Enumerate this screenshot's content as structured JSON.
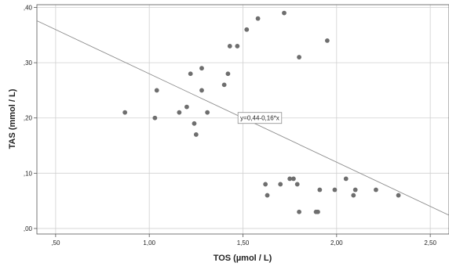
{
  "chart_data": {
    "type": "scatter",
    "title": "",
    "xlabel": "TOS (µmol / L)",
    "ylabel": "TAS (mmol / L)",
    "xlim": [
      0.4,
      2.6
    ],
    "ylim": [
      -0.01,
      0.405
    ],
    "x_ticks": [
      0.5,
      1.0,
      1.5,
      2.0,
      2.5
    ],
    "x_tick_labels": [
      ",50",
      "1,00",
      "1,50",
      "2,00",
      "2,50"
    ],
    "y_ticks": [
      0.0,
      0.1,
      0.2,
      0.3,
      0.4
    ],
    "y_tick_labels": [
      ",00",
      ",10",
      ",20",
      ",30",
      ",40"
    ],
    "grid": true,
    "points": [
      {
        "x": 0.87,
        "y": 0.21
      },
      {
        "x": 1.03,
        "y": 0.2
      },
      {
        "x": 1.04,
        "y": 0.25
      },
      {
        "x": 1.16,
        "y": 0.21
      },
      {
        "x": 1.2,
        "y": 0.22
      },
      {
        "x": 1.22,
        "y": 0.28
      },
      {
        "x": 1.24,
        "y": 0.19
      },
      {
        "x": 1.25,
        "y": 0.17
      },
      {
        "x": 1.28,
        "y": 0.29
      },
      {
        "x": 1.28,
        "y": 0.25
      },
      {
        "x": 1.31,
        "y": 0.21
      },
      {
        "x": 1.4,
        "y": 0.26
      },
      {
        "x": 1.42,
        "y": 0.28
      },
      {
        "x": 1.43,
        "y": 0.33
      },
      {
        "x": 1.47,
        "y": 0.33
      },
      {
        "x": 1.52,
        "y": 0.36
      },
      {
        "x": 1.58,
        "y": 0.38
      },
      {
        "x": 1.62,
        "y": 0.08
      },
      {
        "x": 1.63,
        "y": 0.06
      },
      {
        "x": 1.7,
        "y": 0.08
      },
      {
        "x": 1.72,
        "y": 0.39
      },
      {
        "x": 1.75,
        "y": 0.09
      },
      {
        "x": 1.77,
        "y": 0.09
      },
      {
        "x": 1.79,
        "y": 0.08
      },
      {
        "x": 1.8,
        "y": 0.31
      },
      {
        "x": 1.8,
        "y": 0.03
      },
      {
        "x": 1.89,
        "y": 0.03
      },
      {
        "x": 1.9,
        "y": 0.03
      },
      {
        "x": 1.91,
        "y": 0.07
      },
      {
        "x": 1.95,
        "y": 0.34
      },
      {
        "x": 1.99,
        "y": 0.07
      },
      {
        "x": 2.05,
        "y": 0.09
      },
      {
        "x": 2.09,
        "y": 0.06
      },
      {
        "x": 2.1,
        "y": 0.07
      },
      {
        "x": 2.21,
        "y": 0.07
      },
      {
        "x": 2.33,
        "y": 0.06
      }
    ],
    "fit_line": {
      "intercept": 0.44,
      "slope": -0.16
    },
    "annotation": {
      "text": "y=0,44-0,16*x",
      "x": 1.59,
      "y": 0.2
    },
    "colors": {
      "points": "#6e6e6e",
      "line": "#8c8c8c",
      "grid": "#d0d0d0",
      "axis": "#555555"
    }
  }
}
